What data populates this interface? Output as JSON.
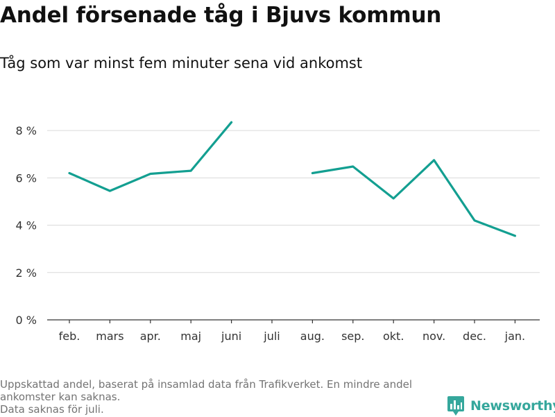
{
  "title": "Andel försenade tåg i Bjuvs kommun",
  "subtitle": "Tåg som var minst fem minuter sena vid ankomst",
  "notes": {
    "line1": "Uppskattad andel, baserat på insamlad data från Trafikverket. En mindre andel",
    "line2": "ankomster kan saknas.",
    "line3": "Data saknas för juli."
  },
  "brand": {
    "name": "Newsworthy",
    "icon": "newsworthy-logo-icon",
    "color": "#35a79c"
  },
  "chart_data": {
    "type": "line",
    "categories": [
      "feb.",
      "mars",
      "apr.",
      "maj",
      "juni",
      "juli",
      "aug.",
      "sep.",
      "okt.",
      "nov.",
      "dec.",
      "jan."
    ],
    "series": [
      {
        "values": [
          6.2,
          5.45,
          6.17,
          6.3,
          8.35,
          null,
          6.2,
          6.48,
          5.13,
          6.75,
          4.2,
          3.55
        ],
        "color": "#139f91"
      }
    ],
    "y_ticks": [
      0,
      2,
      4,
      6,
      8
    ],
    "y_tick_suffix": " %",
    "ylim": [
      0,
      9
    ],
    "grid": true,
    "xlabel": "",
    "ylabel": ""
  }
}
